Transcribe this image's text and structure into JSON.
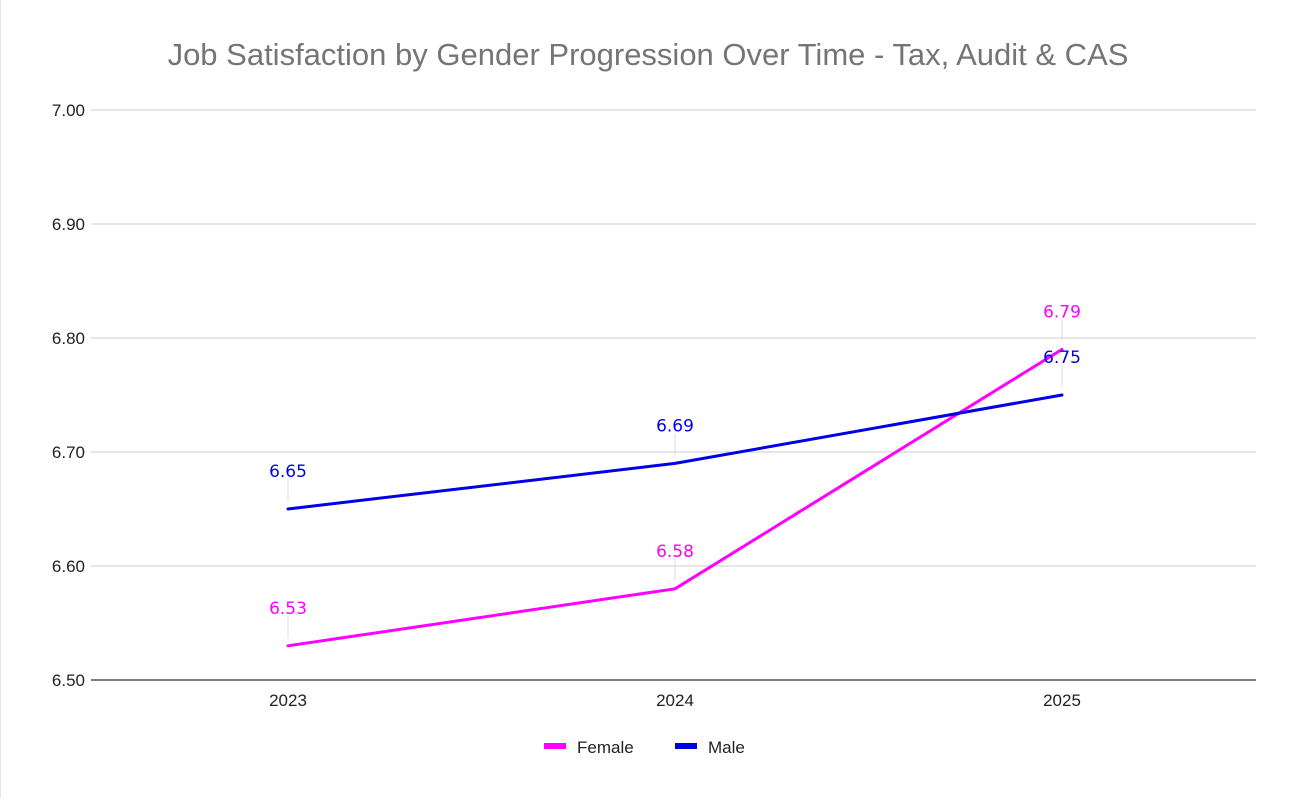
{
  "chart_data": {
    "type": "line",
    "title": "Job Satisfaction by Gender Progression Over Time - Tax, Audit & CAS",
    "xlabel": "",
    "ylabel": "",
    "categories": [
      "2023",
      "2024",
      "2025"
    ],
    "ylim": [
      6.5,
      7.0
    ],
    "yticks": [
      "6.50",
      "6.60",
      "6.70",
      "6.80",
      "6.90",
      "7.00"
    ],
    "grid": true,
    "legend_position": "bottom",
    "series": [
      {
        "name": "Female",
        "color": "#ff00ff",
        "values": [
          6.53,
          6.58,
          6.79
        ],
        "labels": [
          "6.53",
          "6.58",
          "6.79"
        ]
      },
      {
        "name": "Male",
        "color": "#0000e6",
        "values": [
          6.65,
          6.69,
          6.75
        ],
        "labels": [
          "6.65",
          "6.69",
          "6.75"
        ]
      }
    ]
  }
}
